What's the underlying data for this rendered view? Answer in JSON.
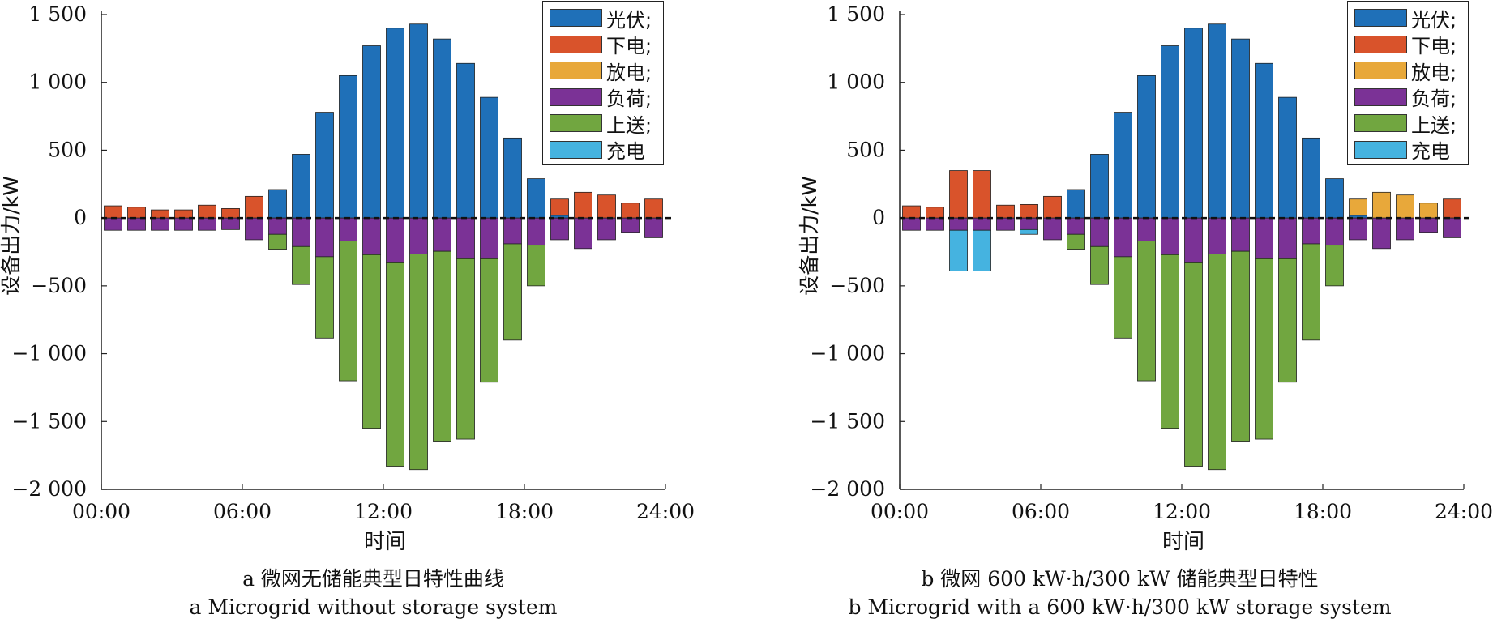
{
  "panels": [
    {
      "caption_cn": "a  微网无储能典型日特性曲线",
      "caption_en": "a  Microgrid without storage system"
    },
    {
      "caption_cn": "b  微网 600 kW·h/300 kW 储能典型日特性",
      "caption_en": "b  Microgrid with a 600 kW·h/300 kW storage system"
    }
  ],
  "colors": {
    "光伏": "#1f70b8",
    "下电": "#d9532b",
    "放电": "#e8a83a",
    "负荷": "#7b3296",
    "上送": "#71a640",
    "充电": "#45b3e0"
  },
  "chart_data": [
    {
      "type": "bar",
      "stacked": true,
      "xlabel": "时间",
      "ylabel": "设备出力/kW",
      "ylim": [
        -2000,
        1500
      ],
      "yticks": [
        -2000,
        -1500,
        -1000,
        -500,
        0,
        500,
        1000,
        1500
      ],
      "ytick_labels": [
        "−2 000",
        "−1 500",
        "−1 000",
        "−500",
        "0",
        "500",
        "1 000",
        "1 500"
      ],
      "xlim": [
        0,
        24
      ],
      "xticks": [
        "00:00",
        "06:00",
        "12:00",
        "18:00",
        "24:00"
      ],
      "x": [
        0.5,
        1.5,
        2.5,
        3.5,
        4.5,
        5.5,
        6.5,
        7.5,
        8.5,
        9.5,
        10.5,
        11.5,
        12.5,
        13.5,
        14.5,
        15.5,
        16.5,
        17.5,
        18.5,
        19.5,
        20.5,
        21.5,
        22.5,
        23.5
      ],
      "legend": [
        "光伏;",
        "下电;",
        "放电;",
        "负荷;",
        "上送;",
        "充电"
      ],
      "legend_position": "top-right",
      "series": [
        {
          "name": "光伏",
          "values": [
            0,
            0,
            0,
            0,
            0,
            0,
            0,
            210,
            470,
            780,
            1050,
            1270,
            1400,
            1430,
            1320,
            1140,
            890,
            590,
            290,
            20,
            0,
            0,
            0,
            0
          ]
        },
        {
          "name": "下电",
          "values": [
            90,
            80,
            60,
            60,
            95,
            70,
            160,
            0,
            0,
            0,
            0,
            0,
            0,
            0,
            0,
            0,
            0,
            0,
            0,
            120,
            190,
            170,
            110,
            140
          ]
        },
        {
          "name": "放电",
          "values": [
            0,
            0,
            0,
            0,
            0,
            0,
            0,
            0,
            0,
            0,
            0,
            0,
            0,
            0,
            0,
            0,
            0,
            0,
            0,
            0,
            0,
            0,
            0,
            0
          ]
        },
        {
          "name": "负荷",
          "values": [
            -90,
            -90,
            -90,
            -90,
            -90,
            -85,
            -160,
            -120,
            -210,
            -285,
            -170,
            -270,
            -330,
            -265,
            -245,
            -300,
            -300,
            -190,
            -200,
            -160,
            -225,
            -160,
            -105,
            -145
          ]
        },
        {
          "name": "上送",
          "values": [
            0,
            0,
            0,
            0,
            0,
            0,
            0,
            -110,
            -280,
            -600,
            -1030,
            -1280,
            -1500,
            -1590,
            -1400,
            -1330,
            -910,
            -710,
            -300,
            0,
            0,
            0,
            0,
            0
          ]
        },
        {
          "name": "充电",
          "values": [
            0,
            0,
            0,
            0,
            0,
            0,
            0,
            0,
            0,
            0,
            0,
            0,
            0,
            0,
            0,
            0,
            0,
            0,
            0,
            0,
            0,
            0,
            0,
            0
          ]
        }
      ]
    },
    {
      "type": "bar",
      "stacked": true,
      "xlabel": "时间",
      "ylabel": "设备出力/kW",
      "ylim": [
        -2000,
        1500
      ],
      "yticks": [
        -2000,
        -1500,
        -1000,
        -500,
        0,
        500,
        1000,
        1500
      ],
      "ytick_labels": [
        "−2 000",
        "−1 500",
        "−1 000",
        "−500",
        "0",
        "500",
        "1 000",
        "1 500"
      ],
      "xlim": [
        0,
        24
      ],
      "xticks": [
        "00:00",
        "06:00",
        "12:00",
        "18:00",
        "24:00"
      ],
      "x": [
        0.5,
        1.5,
        2.5,
        3.5,
        4.5,
        5.5,
        6.5,
        7.5,
        8.5,
        9.5,
        10.5,
        11.5,
        12.5,
        13.5,
        14.5,
        15.5,
        16.5,
        17.5,
        18.5,
        19.5,
        20.5,
        21.5,
        22.5,
        23.5
      ],
      "legend": [
        "光伏;",
        "下电;",
        "放电;",
        "负荷;",
        "上送;",
        "充电"
      ],
      "legend_position": "top-right",
      "series": [
        {
          "name": "光伏",
          "values": [
            0,
            0,
            0,
            0,
            0,
            0,
            0,
            210,
            470,
            780,
            1050,
            1270,
            1400,
            1430,
            1320,
            1140,
            890,
            590,
            290,
            20,
            0,
            0,
            0,
            0
          ]
        },
        {
          "name": "下电",
          "values": [
            90,
            80,
            350,
            350,
            95,
            100,
            160,
            0,
            0,
            0,
            0,
            0,
            0,
            0,
            0,
            0,
            0,
            0,
            0,
            0,
            0,
            0,
            0,
            140
          ]
        },
        {
          "name": "放电",
          "values": [
            0,
            0,
            0,
            0,
            0,
            0,
            0,
            0,
            0,
            0,
            0,
            0,
            0,
            0,
            0,
            0,
            0,
            0,
            0,
            120,
            190,
            170,
            110,
            0
          ]
        },
        {
          "name": "负荷",
          "values": [
            -90,
            -90,
            -90,
            -90,
            -90,
            -85,
            -160,
            -120,
            -210,
            -285,
            -170,
            -270,
            -330,
            -265,
            -245,
            -300,
            -300,
            -190,
            -200,
            -160,
            -225,
            -160,
            -105,
            -145
          ]
        },
        {
          "name": "上送",
          "values": [
            0,
            0,
            0,
            0,
            0,
            0,
            0,
            -110,
            -280,
            -600,
            -1030,
            -1280,
            -1500,
            -1590,
            -1400,
            -1330,
            -910,
            -710,
            -300,
            0,
            0,
            0,
            0,
            0
          ]
        },
        {
          "name": "充电",
          "values": [
            0,
            0,
            -300,
            -300,
            0,
            -35,
            0,
            0,
            0,
            0,
            0,
            0,
            0,
            0,
            0,
            0,
            0,
            0,
            0,
            0,
            0,
            0,
            0,
            0
          ]
        }
      ]
    }
  ]
}
